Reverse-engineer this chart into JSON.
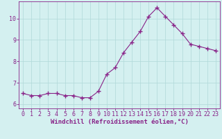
{
  "x": [
    0,
    1,
    2,
    3,
    4,
    5,
    6,
    7,
    8,
    9,
    10,
    11,
    12,
    13,
    14,
    15,
    16,
    17,
    18,
    19,
    20,
    21,
    22,
    23
  ],
  "y": [
    6.5,
    6.4,
    6.4,
    6.5,
    6.5,
    6.4,
    6.4,
    6.3,
    6.3,
    6.6,
    7.4,
    7.7,
    8.4,
    8.9,
    9.4,
    10.1,
    10.5,
    10.1,
    9.7,
    9.3,
    8.8,
    8.7,
    8.6,
    8.5
  ],
  "line_color": "#882288",
  "marker": "+",
  "marker_size": 4,
  "bg_color": "#d4f0f0",
  "grid_color": "#b0d8d8",
  "xlabel": "Windchill (Refroidissement éolien,°C)",
  "xlabel_fontsize": 6.5,
  "tick_fontsize": 6.0,
  "ylim": [
    5.8,
    10.8
  ],
  "yticks": [
    6,
    7,
    8,
    9,
    10
  ],
  "xlim": [
    -0.5,
    23.5
  ]
}
